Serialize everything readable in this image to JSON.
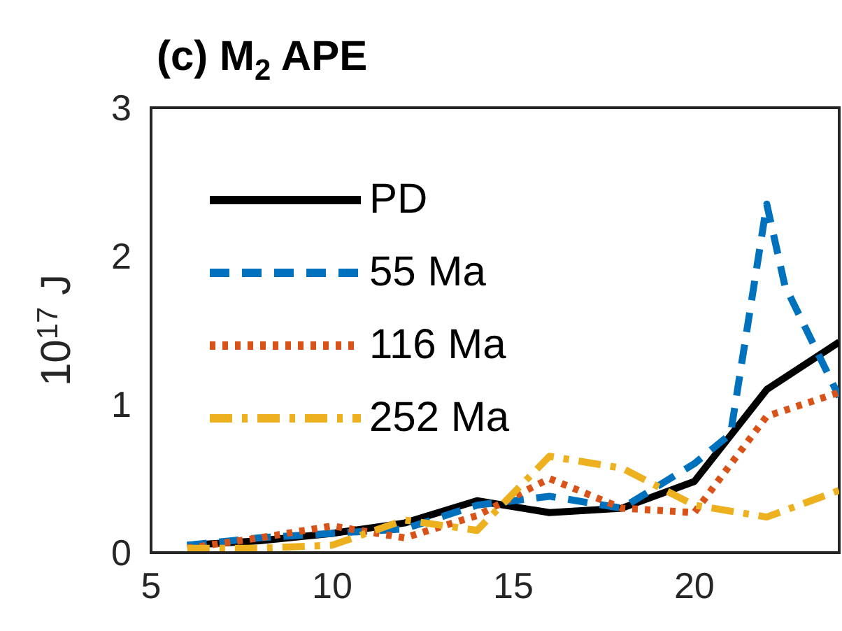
{
  "chart_data": {
    "type": "line",
    "title": "(c) M$_{2}$ APE",
    "ylabel": "10$^{17}$ J",
    "xlim": [
      5,
      24
    ],
    "xticks": [
      5,
      10,
      15,
      20
    ],
    "ylim": [
      0,
      3
    ],
    "yticks": [
      0,
      1,
      2,
      3
    ],
    "grid": false,
    "legend": "top left",
    "marker": "none",
    "series": [
      {
        "name": "PD",
        "color": "#000000",
        "line_style": "solid",
        "x": [
          6,
          8,
          10,
          12,
          14,
          16,
          18,
          20,
          22,
          24
        ],
        "values": [
          0.05,
          0.08,
          0.13,
          0.2,
          0.35,
          0.27,
          0.3,
          0.48,
          1.1,
          1.42
        ]
      },
      {
        "name": "55 Ma",
        "color": "#0072bd",
        "line_style": "dashed",
        "x": [
          6,
          8,
          10,
          12,
          14,
          16,
          18,
          20,
          21,
          22,
          22.5,
          24
        ],
        "values": [
          0.05,
          0.1,
          0.13,
          0.16,
          0.32,
          0.38,
          0.3,
          0.6,
          0.8,
          2.35,
          1.8,
          1.05
        ]
      },
      {
        "name": "116 Ma",
        "color": "#d95319",
        "line_style": "dotted",
        "x": [
          6,
          8,
          10,
          12,
          14,
          16,
          18,
          20,
          22,
          24
        ],
        "values": [
          0.03,
          0.1,
          0.18,
          0.1,
          0.25,
          0.5,
          0.3,
          0.27,
          0.92,
          1.08
        ]
      },
      {
        "name": "252 Ma",
        "color": "#edb120",
        "line_style": "dashdot",
        "x": [
          6,
          8,
          10,
          12,
          14,
          16,
          18,
          20,
          22,
          24
        ],
        "values": [
          0.03,
          0.03,
          0.05,
          0.22,
          0.15,
          0.65,
          0.57,
          0.32,
          0.24,
          0.42
        ]
      }
    ]
  }
}
